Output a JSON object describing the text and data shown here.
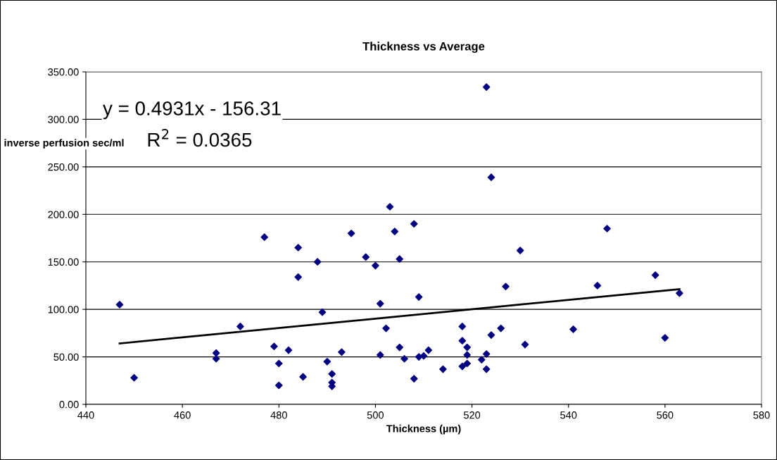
{
  "chart_data": {
    "type": "scatter",
    "title": "Thickness vs Average",
    "xlabel": "Thickness (µm)",
    "ylabel": "inverse perfusion sec/ml",
    "annotations": [
      "y = 0.4931x - 156.31",
      "R$^{2}$ = 0.0365"
    ],
    "xlim": [
      440,
      580
    ],
    "xticks": [
      440,
      460,
      480,
      500,
      520,
      540,
      560,
      580
    ],
    "ylim": [
      0,
      350
    ],
    "yticks": [
      {
        "value": 0,
        "label": "0.00"
      },
      {
        "value": 50,
        "label": "50.00"
      },
      {
        "value": 100,
        "label": "100.00"
      },
      {
        "value": 150,
        "label": "150.00"
      },
      {
        "value": 200,
        "label": "200.00"
      },
      {
        "value": 250,
        "label": "250.00"
      },
      {
        "value": 300,
        "label": "300.00"
      },
      {
        "value": 350,
        "label": "350.00"
      }
    ],
    "grid": "y",
    "legend": false,
    "marker": "diamond",
    "series": [
      {
        "color": "#000080",
        "x": [
          447,
          450,
          467,
          467,
          472,
          477,
          484,
          484,
          479,
          482,
          480,
          480,
          485,
          488,
          489,
          490,
          491,
          491,
          491,
          493,
          495,
          498,
          500,
          501,
          501,
          502.2,
          503,
          504,
          505,
          505,
          506,
          508,
          508,
          509,
          509,
          510,
          511,
          514,
          518,
          518,
          518,
          519,
          519,
          519,
          522,
          523,
          523,
          523,
          524,
          524,
          526,
          527,
          530,
          531,
          541,
          548,
          546,
          558,
          560,
          563
        ],
        "values": [
          105,
          28,
          54,
          48,
          82,
          176,
          165,
          134,
          61,
          57,
          43,
          20,
          29,
          150,
          97,
          45,
          32,
          23,
          19,
          55,
          180,
          155,
          146,
          106,
          52,
          80,
          208,
          182,
          153,
          60,
          48,
          190,
          27,
          113,
          50,
          51,
          57,
          37,
          82,
          67,
          40,
          60,
          52,
          43,
          47,
          334,
          53,
          37,
          239,
          73,
          80,
          124,
          162,
          63,
          79,
          185,
          125,
          136,
          70,
          117
        ]
      },
      {
        "type": "line",
        "color": "#000000",
        "line_style": "solid",
        "marker": "none",
        "x": [
          447,
          563
        ],
        "values": [
          64.1,
          121.3
        ]
      }
    ]
  }
}
